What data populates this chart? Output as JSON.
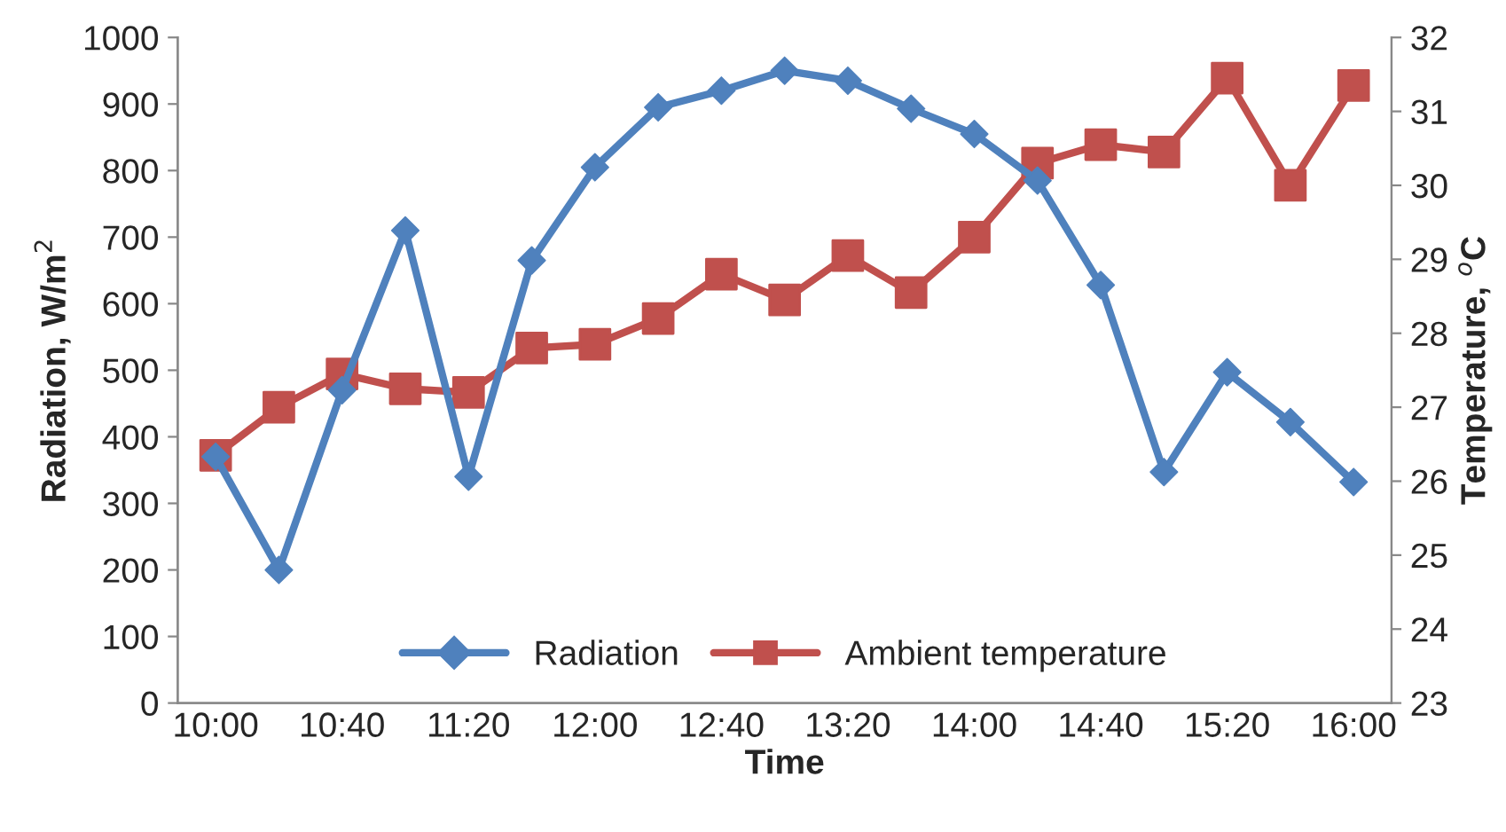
{
  "chart_data": {
    "type": "line",
    "categories": [
      "10:00",
      null,
      "10:40",
      null,
      "11:20",
      null,
      "12:00",
      null,
      "12:40",
      null,
      "13:20",
      null,
      "14:00",
      null,
      "14:40",
      null,
      "15:20",
      null,
      "16:00"
    ],
    "xlabel": "Time",
    "ylabel": "Radiation, W/m$^{2}$",
    "y2label": "Temperature, $^{o}$C",
    "series": [
      {
        "name": "Radiation",
        "color": "#4f81bd",
        "marker": "diamond",
        "line_style": "solid",
        "values": [
          370,
          200,
          470,
          710,
          340,
          665,
          805,
          895,
          920,
          950,
          935,
          893,
          855,
          785,
          628,
          347,
          497,
          422,
          332
        ]
      },
      {
        "name": "Ambient temperature",
        "color": "#c0504d",
        "marker": "square",
        "line_style": "solid",
        "axis": "y2",
        "values": [
          26.35,
          27.0,
          27.45,
          27.25,
          27.2,
          27.8,
          27.85,
          28.2,
          28.8,
          28.45,
          29.05,
          28.55,
          29.3,
          30.3,
          30.55,
          30.45,
          31.45,
          30.0,
          31.35
        ]
      }
    ],
    "ylim": [
      0,
      1000
    ],
    "yticks": [
      0,
      100,
      200,
      300,
      400,
      500,
      600,
      700,
      800,
      900,
      1000
    ],
    "y2lim": [
      23,
      32
    ],
    "y2ticks": [
      23,
      24,
      25,
      26,
      27,
      28,
      29,
      30,
      31,
      32
    ],
    "grid": false,
    "legend": "bottom"
  }
}
